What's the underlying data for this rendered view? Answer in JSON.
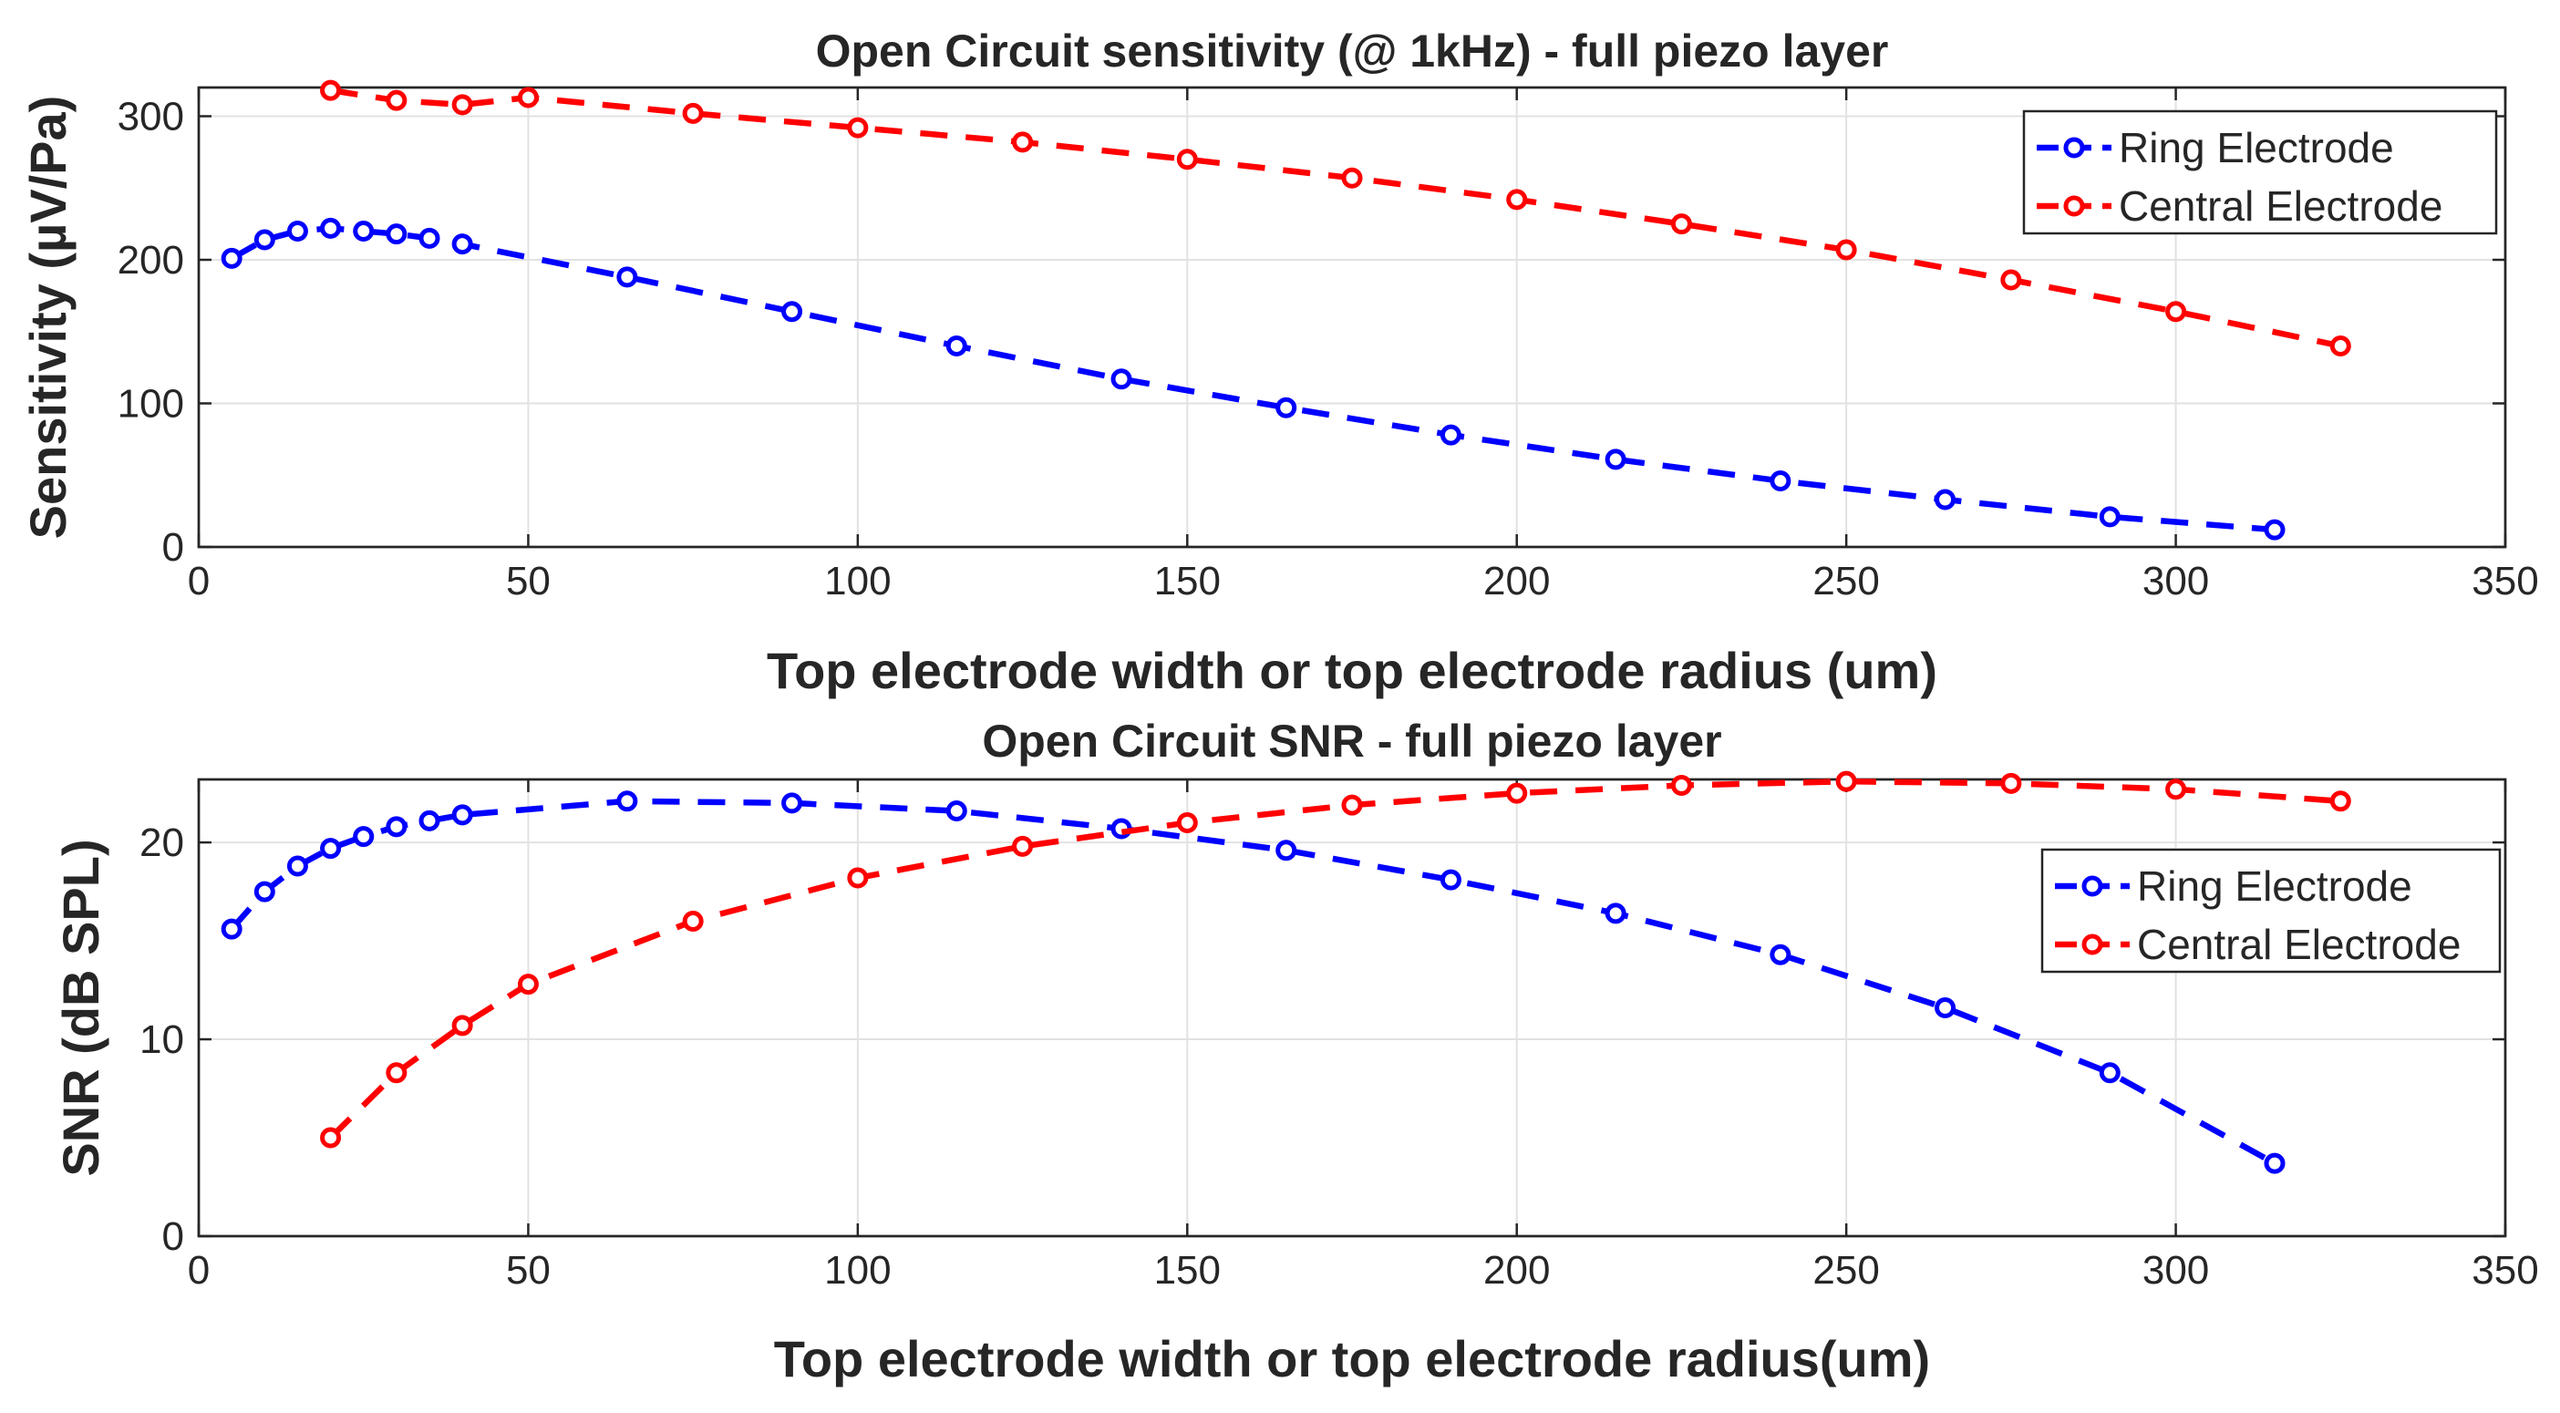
{
  "colors": {
    "ring": "#0000ff",
    "central": "#ff0000",
    "axis": "#262626",
    "grid": "#e2e2e2"
  },
  "chart_data": [
    {
      "type": "line",
      "title": "Open Circuit sensitivity (@ 1kHz) - full piezo layer",
      "xlabel": "Top electrode width or top electrode radius (um)",
      "ylabel": "Sensitivity (µV/Pa)",
      "xlim": [
        0,
        350
      ],
      "ylim": [
        0,
        320
      ],
      "xticks": [
        0,
        50,
        100,
        150,
        200,
        250,
        300,
        350
      ],
      "yticks": [
        0,
        100,
        200,
        300
      ],
      "grid": true,
      "legend_position": "top-right",
      "series": [
        {
          "name": "Ring Electrode",
          "color": "#0000ff",
          "x": [
            5,
            10,
            15,
            20,
            25,
            30,
            35,
            40,
            65,
            90,
            115,
            140,
            165,
            190,
            215,
            240,
            265,
            290,
            315
          ],
          "y": [
            201,
            214,
            220,
            222,
            220,
            218,
            215,
            211,
            188,
            164,
            140,
            117,
            97,
            78,
            61,
            46,
            33,
            21,
            12
          ]
        },
        {
          "name": "Central Electrode",
          "color": "#ff0000",
          "x": [
            20,
            30,
            40,
            50,
            75,
            100,
            125,
            150,
            175,
            200,
            225,
            250,
            275,
            300,
            325
          ],
          "y": [
            318,
            311,
            308,
            313,
            302,
            292,
            282,
            270,
            257,
            242,
            225,
            207,
            186,
            164,
            140
          ]
        }
      ]
    },
    {
      "type": "line",
      "title": "Open Circuit SNR - full piezo layer",
      "xlabel": "Top electrode width or top electrode radius(um)",
      "ylabel": "SNR (dB SPL)",
      "xlim": [
        0,
        350
      ],
      "ylim": [
        0,
        23.2
      ],
      "xticks": [
        0,
        50,
        100,
        150,
        200,
        250,
        300,
        350
      ],
      "yticks": [
        0,
        10,
        20
      ],
      "grid": true,
      "legend_position": "right",
      "series": [
        {
          "name": "Ring Electrode",
          "color": "#0000ff",
          "x": [
            5,
            10,
            15,
            20,
            25,
            30,
            35,
            40,
            65,
            90,
            115,
            140,
            165,
            190,
            215,
            240,
            265,
            290,
            315
          ],
          "y": [
            15.6,
            17.5,
            18.8,
            19.7,
            20.3,
            20.8,
            21.1,
            21.4,
            22.1,
            22.0,
            21.6,
            20.7,
            19.6,
            18.1,
            16.4,
            14.3,
            11.6,
            8.3,
            3.7
          ]
        },
        {
          "name": "Central Electrode",
          "color": "#ff0000",
          "x": [
            20,
            30,
            40,
            50,
            75,
            100,
            125,
            150,
            175,
            200,
            225,
            250,
            275,
            300,
            325
          ],
          "y": [
            5.0,
            8.3,
            10.7,
            12.8,
            16.0,
            18.2,
            19.8,
            21.0,
            21.9,
            22.5,
            22.9,
            23.1,
            23.0,
            22.7,
            22.1
          ]
        }
      ]
    }
  ]
}
